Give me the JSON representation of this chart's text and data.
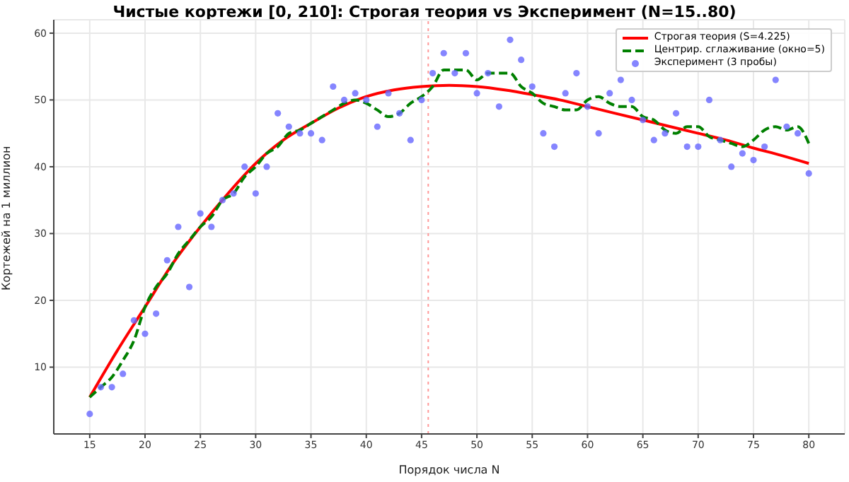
{
  "chart_data": {
    "type": "line",
    "title": "Чистые кортежи [0, 210]: Строгая теория vs Эксперимент (N=15..80)",
    "xlabel": "Порядок числа N",
    "ylabel": "Кортежей на 1 миллион",
    "xlim": [
      11.75,
      83.25
    ],
    "ylim": [
      0,
      62
    ],
    "xticks": [
      15,
      20,
      25,
      30,
      35,
      40,
      45,
      50,
      55,
      60,
      65,
      70,
      75,
      80
    ],
    "yticks": [
      10,
      20,
      30,
      40,
      50,
      60
    ],
    "grid": true,
    "legend": "top right",
    "ref_lines": [
      {
        "axis": "x",
        "value": 45.6,
        "color": "#ff9999",
        "line_style": "dotted"
      }
    ],
    "series": [
      {
        "name": "Строгая теория (S=4.225)",
        "color": "#ff0000",
        "line_style": "solid",
        "marker": "none",
        "x": [
          15,
          17.5,
          20,
          22.5,
          25,
          27.5,
          30,
          32.5,
          35,
          37.5,
          40,
          42.5,
          45,
          47.5,
          50,
          52.5,
          55,
          57.5,
          60,
          62.5,
          65,
          67.5,
          70,
          72.5,
          75,
          77.5,
          80
        ],
        "values": [
          5.5,
          12.5,
          19,
          25.5,
          31,
          36,
          40.5,
          44,
          46.5,
          48.8,
          50.5,
          51.5,
          52,
          52.2,
          52,
          51.5,
          50.8,
          50,
          49,
          48,
          47,
          46,
          45,
          44,
          42.8,
          41.7,
          40.5
        ]
      },
      {
        "name": "Центрир. сглаживание (окно=5)",
        "color": "#008000",
        "line_style": "dashed",
        "marker": "none",
        "x": [
          15,
          16,
          17,
          18,
          19,
          20,
          21,
          22,
          23,
          24,
          25,
          26,
          27,
          28,
          29,
          30,
          31,
          32,
          33,
          34,
          35,
          36,
          37,
          38,
          39,
          40,
          41,
          42,
          43,
          44,
          45,
          46,
          47,
          48,
          49,
          50,
          51,
          52,
          53,
          54,
          55,
          56,
          57,
          58,
          59,
          60,
          61,
          62,
          63,
          64,
          65,
          66,
          67,
          68,
          69,
          70,
          71,
          72,
          73,
          74,
          75,
          76,
          77,
          78,
          79,
          80
        ],
        "values": [
          5.5,
          7,
          8.5,
          11,
          14,
          19,
          22,
          24,
          27,
          29,
          31,
          32.5,
          35,
          36,
          38.5,
          40,
          42,
          43,
          45,
          45.5,
          46.5,
          47.5,
          48.5,
          49.5,
          50,
          49.5,
          48.5,
          47.5,
          48,
          49.5,
          50.5,
          52,
          54.5,
          54.5,
          54.5,
          53,
          54,
          54,
          54,
          52,
          51,
          49.5,
          49,
          48.5,
          48.5,
          50,
          50.5,
          49.5,
          49,
          49,
          47.5,
          47,
          45.5,
          45,
          46,
          46,
          44.5,
          44,
          43.5,
          43,
          44,
          45.5,
          46,
          45.5,
          46,
          43.5
        ]
      },
      {
        "name": "Эксперимент (3 пробы)",
        "type": "scatter",
        "color": "#6666ff",
        "marker": "circle",
        "x": [
          15,
          16,
          17,
          18,
          19,
          20,
          21,
          22,
          23,
          24,
          25,
          26,
          27,
          28,
          29,
          30,
          31,
          32,
          33,
          34,
          35,
          36,
          37,
          38,
          39,
          40,
          41,
          42,
          43,
          44,
          45,
          46,
          47,
          48,
          49,
          50,
          51,
          52,
          53,
          54,
          55,
          56,
          57,
          58,
          59,
          60,
          61,
          62,
          63,
          64,
          65,
          66,
          67,
          68,
          69,
          70,
          71,
          72,
          73,
          74,
          75,
          76,
          77,
          78,
          79,
          80
        ],
        "values": [
          3,
          7,
          7,
          9,
          17,
          15,
          18,
          26,
          31,
          22,
          33,
          31,
          35,
          36,
          40,
          36,
          40,
          48,
          46,
          45,
          45,
          44,
          52,
          50,
          51,
          50,
          46,
          51,
          48,
          44,
          50,
          54,
          57,
          54,
          57,
          51,
          54,
          49,
          59,
          56,
          52,
          45,
          43,
          51,
          54,
          49,
          45,
          51,
          53,
          50,
          47,
          44,
          45,
          48,
          43,
          43,
          50,
          44,
          40,
          42,
          41,
          43,
          53,
          46,
          45,
          39
        ]
      }
    ]
  }
}
